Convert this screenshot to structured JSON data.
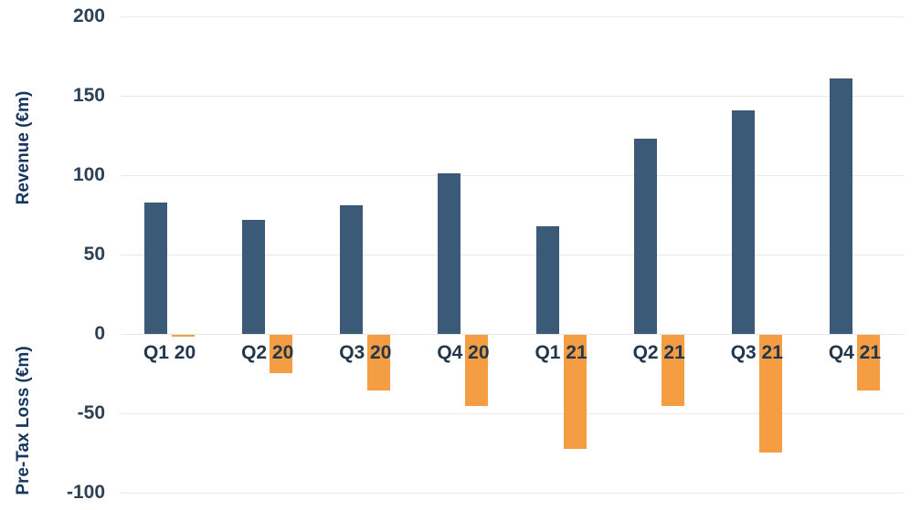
{
  "chart_data": {
    "type": "bar",
    "categories": [
      "Q1 20",
      "Q2 20",
      "Q3 20",
      "Q4 20",
      "Q1 21",
      "Q2 21",
      "Q3 21",
      "Q4 21"
    ],
    "series": [
      {
        "name": "Revenue (€m)",
        "color": "#3a5a78",
        "values": [
          83,
          72,
          81,
          101,
          68,
          123,
          141,
          161
        ]
      },
      {
        "name": "Pre-Tax Loss (€m)",
        "color": "#f59d42",
        "values": [
          -1,
          -24,
          -35,
          -45,
          -72,
          -45,
          -74,
          -35
        ]
      }
    ],
    "title": "",
    "xlabel": "",
    "y_axis_label_top": "Revenue (€m)",
    "y_axis_label_bottom": "Pre-Tax Loss (€m)",
    "y_ticks": [
      200,
      150,
      100,
      50,
      0,
      -50,
      -100
    ],
    "ylim": [
      -100,
      200
    ],
    "grid": true,
    "legend_position": "none"
  },
  "colors": {
    "revenue_bar": "#3a5a78",
    "loss_bar": "#f59d42",
    "tick_text": "#2e4154",
    "axis_title_text": "#17365f",
    "gridline": "#e8e8e8",
    "background": "#ffffff"
  }
}
